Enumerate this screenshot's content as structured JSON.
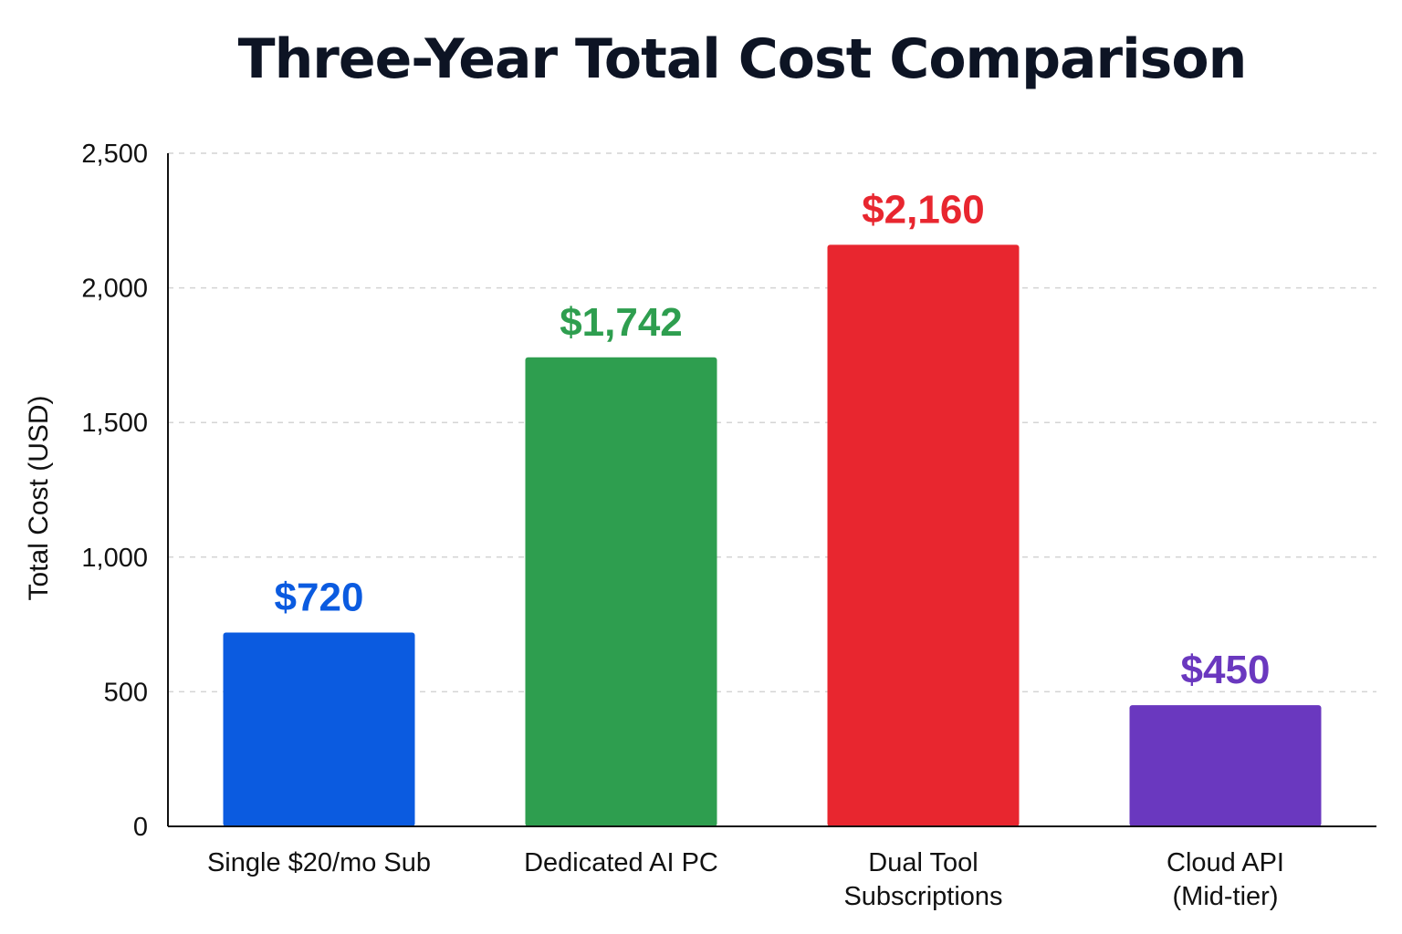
{
  "chart_data": {
    "type": "bar",
    "title": "Three-Year Total Cost Comparison",
    "xlabel": "",
    "ylabel": "Total Cost (USD)",
    "ylim": [
      0,
      2500
    ],
    "yticks": [
      0,
      500,
      1000,
      1500,
      2000,
      2500
    ],
    "ytick_labels": [
      "0",
      "500",
      "1,000",
      "1,500",
      "2,000",
      "2,500"
    ],
    "grid": true,
    "legend": "none",
    "categories": [
      [
        "Single $20/mo Sub"
      ],
      [
        "Dedicated AI PC"
      ],
      [
        "Dual Tool",
        "Subscriptions"
      ],
      [
        "Cloud API",
        "(Mid-tier)"
      ]
    ],
    "values": [
      720,
      1742,
      2160,
      450
    ],
    "value_labels": [
      "$720",
      "$1,742",
      "$2,160",
      "$450"
    ],
    "colors": [
      "#0b5be0",
      "#2e9e4f",
      "#e8262f",
      "#6a38bf"
    ]
  }
}
